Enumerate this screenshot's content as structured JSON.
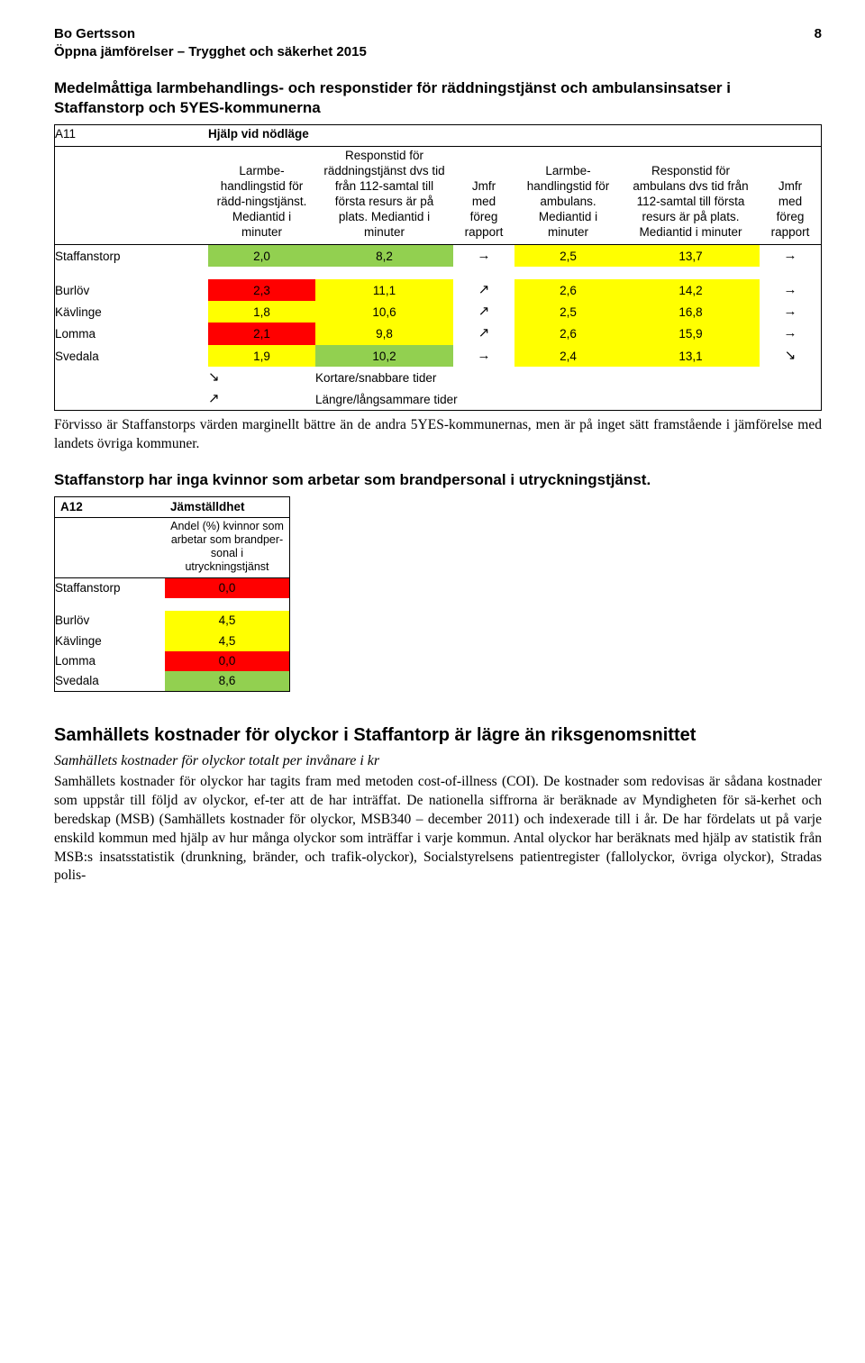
{
  "header": {
    "author": "Bo Gertsson",
    "subtitle": "Öppna jämförelser – Trygghet och säkerhet 2015",
    "page_number": "8"
  },
  "section1": {
    "title": "Medelmåttiga larmbehandlings- och responstider för räddningstjänst och ambulansinsatser i Staffanstorp och 5YES-kommunerna",
    "table_code": "A11",
    "table_title": "Hjälp vid nödläge",
    "columns": {
      "c1": "Larmbe-handlingstid för rädd-ningstjänst. Mediantid i minuter",
      "c2": "Responstid för räddningstjänst dvs tid från 112-samtal till första resurs är på plats. Mediantid i minuter",
      "c3": "Jmfr med föreg rapport",
      "c4": "Larmbe-handlingstid för ambulans. Mediantid i minuter",
      "c5": "Responstid för ambulans dvs tid från 112-samtal till första resurs är på plats. Mediantid i minuter",
      "c6": "Jmfr med föreg rapport"
    },
    "rows": [
      {
        "name": "Staffanstorp",
        "v1": "2,0",
        "c1": "cell-green",
        "v2": "8,2",
        "c2": "cell-green",
        "a1": "→",
        "v3": "2,5",
        "c3": "cell-yellow",
        "v4": "13,7",
        "c4": "cell-yellow",
        "a2": "→"
      },
      {
        "name": "Burlöv",
        "v1": "2,3",
        "c1": "cell-red",
        "v2": "11,1",
        "c2": "cell-yellow",
        "a1": "↗",
        "v3": "2,6",
        "c3": "cell-yellow",
        "v4": "14,2",
        "c4": "cell-yellow",
        "a2": "→"
      },
      {
        "name": "Kävlinge",
        "v1": "1,8",
        "c1": "cell-yellow",
        "v2": "10,6",
        "c2": "cell-yellow",
        "a1": "↗",
        "v3": "2,5",
        "c3": "cell-yellow",
        "v4": "16,8",
        "c4": "cell-yellow",
        "a2": "→"
      },
      {
        "name": "Lomma",
        "v1": "2,1",
        "c1": "cell-red",
        "v2": "9,8",
        "c2": "cell-yellow",
        "a1": "↗",
        "v3": "2,6",
        "c3": "cell-yellow",
        "v4": "15,9",
        "c4": "cell-yellow",
        "a2": "→"
      },
      {
        "name": "Svedala",
        "v1": "1,9",
        "c1": "cell-yellow",
        "v2": "10,2",
        "c2": "cell-green",
        "a1": "→",
        "v3": "2,4",
        "c3": "cell-yellow",
        "v4": "13,1",
        "c4": "cell-yellow",
        "a2": "↘"
      }
    ],
    "legend": {
      "down": "↘",
      "down_text": "Kortare/snabbare tider",
      "up": "↗",
      "up_text": "Längre/långsammare tider"
    },
    "body": "Förvisso är Staffanstorps värden marginellt bättre än de andra 5YES-kommunernas, men är på inget sätt framstående i jämförelse med landets övriga kommuner."
  },
  "section2": {
    "title": "Staffanstorp har inga kvinnor som arbetar som brandpersonal i utryckningstjänst.",
    "table_code": "A12",
    "table_title": "Jämställdhet",
    "sub": "Andel (%) kvinnor som arbetar som brandper-sonal i utryckningstjänst",
    "rows": [
      {
        "name": "Staffanstorp",
        "v": "0,0",
        "c": "cell-red"
      },
      {
        "name": "Burlöv",
        "v": "4,5",
        "c": "cell-yellow"
      },
      {
        "name": "Kävlinge",
        "v": "4,5",
        "c": "cell-yellow"
      },
      {
        "name": "Lomma",
        "v": "0,0",
        "c": "cell-red"
      },
      {
        "name": "Svedala",
        "v": "8,6",
        "c": "cell-green"
      }
    ]
  },
  "section3": {
    "title": "Samhällets kostnader för olyckor i Staffantorp är lägre än riksgenomsnittet",
    "subtitle_italic": "Samhällets kostnader för olyckor totalt per invånare i kr",
    "body": "Samhällets kostnader för olyckor har tagits fram med metoden cost-of-illness (COI). De kostnader som redovisas är sådana kostnader som uppstår till följd av olyckor, ef-ter att de har inträffat. De nationella siffrorna är beräknade av Myndigheten för sä-kerhet och beredskap (MSB) (Samhällets kostnader för olyckor, MSB340 – december 2011) och indexerade till i år. De har fördelats ut på varje enskild kommun med hjälp av hur många olyckor som inträffar i varje kommun. Antal olyckor har beräknats med hjälp av statistik från MSB:s insatsstatistik (drunkning, bränder, och trafik-olyckor), Socialstyrelsens patientregister (fallolyckor, övriga olyckor), Stradas polis-"
  }
}
